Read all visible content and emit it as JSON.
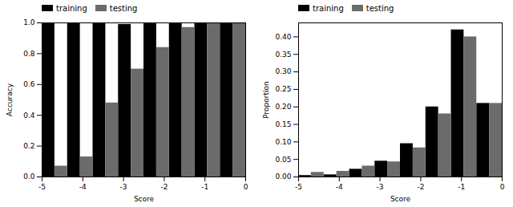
{
  "chart_data": [
    {
      "type": "bar",
      "x_label": "Score",
      "y_label": "Accuracy",
      "bins": [
        -5,
        -4.375,
        -3.75,
        -3.125,
        -2.5,
        -1.875,
        -1.25,
        -0.625,
        0
      ],
      "series": [
        {
          "name": "training",
          "color": "#000000",
          "values": [
            1.0,
            1.0,
            1.0,
            0.99,
            1.0,
            1.0,
            1.0,
            1.0
          ]
        },
        {
          "name": "testing",
          "color": "#6b6b6b",
          "values": [
            0.07,
            0.13,
            0.48,
            0.7,
            0.84,
            0.97,
            1.0,
            1.0
          ]
        }
      ],
      "xlim": [
        -5,
        0
      ],
      "xticks": [
        -5,
        -4,
        -3,
        -2,
        -1,
        0
      ],
      "ylim": [
        0,
        1.0
      ],
      "yticks": [
        {
          "value": 0,
          "label": "0.0"
        },
        0.2,
        0.4,
        0.6,
        0.8,
        {
          "value": 1,
          "label": "1.0"
        }
      ],
      "legend": "upper left"
    },
    {
      "type": "bar",
      "x_label": "Score",
      "y_label": "Proportion",
      "bins": [
        -5,
        -4.375,
        -3.75,
        -3.125,
        -2.5,
        -1.875,
        -1.25,
        -0.625,
        0
      ],
      "series": [
        {
          "name": "training",
          "color": "#000000",
          "values": [
            0.004,
            0.006,
            0.022,
            0.045,
            0.095,
            0.2,
            0.42,
            0.21
          ]
        },
        {
          "name": "testing",
          "color": "#6b6b6b",
          "values": [
            0.013,
            0.016,
            0.031,
            0.043,
            0.083,
            0.18,
            0.4,
            0.21
          ]
        }
      ],
      "xlim": [
        -5,
        0
      ],
      "xticks": [
        -5,
        -4,
        -3,
        -2,
        -1,
        0
      ],
      "ylim": [
        0,
        0.44
      ],
      "yticks": [
        {
          "value": 0,
          "label": "0.00"
        },
        0.05,
        {
          "value": 0.1,
          "label": "0.10"
        },
        0.15,
        {
          "value": 0.2,
          "label": "0.20"
        },
        0.25,
        {
          "value": 0.3,
          "label": "0.30"
        },
        0.35,
        {
          "value": 0.4,
          "label": "0.40"
        }
      ],
      "legend": "upper left"
    }
  ]
}
